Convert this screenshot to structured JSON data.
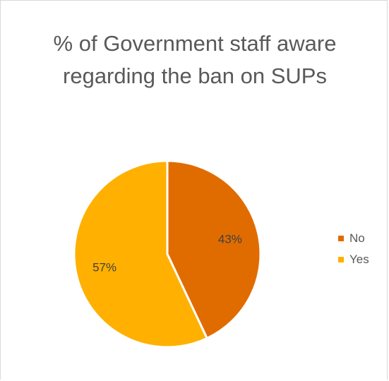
{
  "chart_data": {
    "type": "pie",
    "title": "% of Government staff aware regarding the ban on SUPs",
    "categories": [
      "No",
      "Yes"
    ],
    "values": [
      43,
      57
    ],
    "data_labels": [
      "43%",
      "57%"
    ],
    "colors": [
      "#E06C00",
      "#FFB000"
    ],
    "legend_position": "right"
  }
}
